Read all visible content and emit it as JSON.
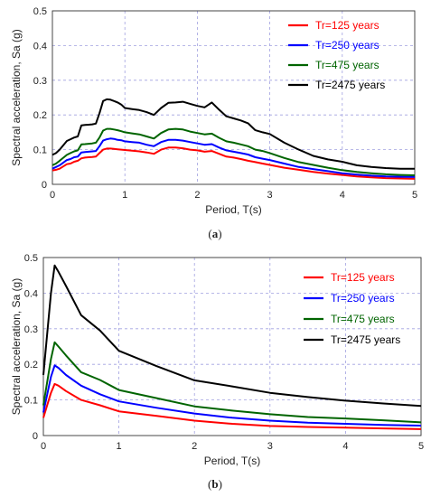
{
  "chart_data": [
    {
      "type": "line",
      "caption": "(a)",
      "xlabel": "Period, T(s)",
      "ylabel": "Spectral acceleration, Sa (g)",
      "xlim": [
        0,
        5
      ],
      "ylim": [
        0,
        0.5
      ],
      "xticks": [
        "0",
        "1",
        "2",
        "3",
        "4",
        "5"
      ],
      "yticks": [
        "0",
        "0.1",
        "0.2",
        "0.3",
        "0.4",
        "0.5"
      ],
      "grid": "dashed",
      "legend_position": "top-right",
      "series": [
        {
          "name": "Tr=125 years",
          "color": "#ff0000",
          "x": [
            0,
            0.05,
            0.1,
            0.2,
            0.25,
            0.3,
            0.35,
            0.4,
            0.45,
            0.5,
            0.55,
            0.6,
            0.65,
            0.7,
            0.75,
            0.8,
            0.85,
            0.9,
            0.95,
            1.0,
            1.1,
            1.2,
            1.3,
            1.4,
            1.5,
            1.6,
            1.7,
            1.8,
            1.9,
            2.0,
            2.1,
            2.2,
            2.3,
            2.4,
            2.5,
            2.6,
            2.7,
            2.8,
            2.9,
            3.0,
            3.2,
            3.4,
            3.6,
            3.8,
            4.0,
            4.2,
            4.4,
            4.6,
            4.8,
            5.0
          ],
          "y": [
            0.04,
            0.042,
            0.045,
            0.058,
            0.06,
            0.065,
            0.068,
            0.075,
            0.077,
            0.078,
            0.079,
            0.08,
            0.09,
            0.1,
            0.103,
            0.103,
            0.102,
            0.101,
            0.1,
            0.099,
            0.097,
            0.095,
            0.092,
            0.088,
            0.1,
            0.106,
            0.106,
            0.104,
            0.1,
            0.098,
            0.094,
            0.096,
            0.088,
            0.08,
            0.077,
            0.073,
            0.068,
            0.064,
            0.06,
            0.056,
            0.048,
            0.042,
            0.036,
            0.031,
            0.027,
            0.023,
            0.02,
            0.018,
            0.017,
            0.016
          ]
        },
        {
          "name": "Tr=250 years",
          "color": "#0000ff",
          "x": [
            0,
            0.05,
            0.1,
            0.2,
            0.25,
            0.3,
            0.35,
            0.4,
            0.45,
            0.5,
            0.55,
            0.6,
            0.65,
            0.7,
            0.75,
            0.8,
            0.85,
            0.9,
            0.95,
            1.0,
            1.1,
            1.2,
            1.3,
            1.4,
            1.5,
            1.6,
            1.7,
            1.8,
            1.9,
            2.0,
            2.1,
            2.2,
            2.3,
            2.4,
            2.5,
            2.6,
            2.7,
            2.8,
            2.9,
            3.0,
            3.2,
            3.4,
            3.6,
            3.8,
            4.0,
            4.2,
            4.4,
            4.6,
            4.8,
            5.0
          ],
          "y": [
            0.045,
            0.05,
            0.055,
            0.07,
            0.073,
            0.078,
            0.08,
            0.092,
            0.093,
            0.094,
            0.095,
            0.096,
            0.11,
            0.126,
            0.13,
            0.132,
            0.131,
            0.128,
            0.127,
            0.124,
            0.122,
            0.12,
            0.114,
            0.11,
            0.122,
            0.128,
            0.128,
            0.126,
            0.122,
            0.118,
            0.114,
            0.116,
            0.106,
            0.098,
            0.094,
            0.09,
            0.086,
            0.078,
            0.074,
            0.07,
            0.06,
            0.05,
            0.044,
            0.038,
            0.032,
            0.028,
            0.025,
            0.023,
            0.022,
            0.021
          ]
        },
        {
          "name": "Tr=475 years",
          "color": "#006400",
          "x": [
            0,
            0.05,
            0.1,
            0.2,
            0.25,
            0.3,
            0.35,
            0.4,
            0.45,
            0.5,
            0.55,
            0.6,
            0.65,
            0.7,
            0.75,
            0.8,
            0.85,
            0.9,
            0.95,
            1.0,
            1.1,
            1.2,
            1.3,
            1.4,
            1.5,
            1.6,
            1.7,
            1.8,
            1.9,
            2.0,
            2.1,
            2.2,
            2.3,
            2.4,
            2.5,
            2.6,
            2.7,
            2.8,
            2.9,
            3.0,
            3.2,
            3.4,
            3.6,
            3.8,
            4.0,
            4.2,
            4.4,
            4.6,
            4.8,
            5.0
          ],
          "y": [
            0.055,
            0.06,
            0.068,
            0.085,
            0.09,
            0.095,
            0.098,
            0.115,
            0.116,
            0.117,
            0.118,
            0.12,
            0.135,
            0.155,
            0.16,
            0.16,
            0.158,
            0.156,
            0.153,
            0.15,
            0.147,
            0.144,
            0.138,
            0.132,
            0.148,
            0.158,
            0.16,
            0.158,
            0.152,
            0.148,
            0.144,
            0.146,
            0.134,
            0.124,
            0.12,
            0.115,
            0.11,
            0.1,
            0.096,
            0.09,
            0.076,
            0.064,
            0.056,
            0.048,
            0.041,
            0.036,
            0.032,
            0.029,
            0.027,
            0.026
          ]
        },
        {
          "name": "Tr=2475 years",
          "color": "#000000",
          "x": [
            0,
            0.05,
            0.1,
            0.2,
            0.25,
            0.3,
            0.35,
            0.4,
            0.45,
            0.5,
            0.55,
            0.6,
            0.65,
            0.7,
            0.75,
            0.8,
            0.85,
            0.9,
            0.95,
            1.0,
            1.1,
            1.2,
            1.3,
            1.4,
            1.5,
            1.6,
            1.7,
            1.8,
            1.9,
            2.0,
            2.1,
            2.2,
            2.3,
            2.4,
            2.5,
            2.6,
            2.7,
            2.8,
            2.9,
            3.0,
            3.2,
            3.4,
            3.6,
            3.8,
            4.0,
            4.2,
            4.4,
            4.6,
            4.8,
            5.0
          ],
          "y": [
            0.085,
            0.09,
            0.1,
            0.125,
            0.13,
            0.135,
            0.138,
            0.17,
            0.171,
            0.172,
            0.173,
            0.175,
            0.205,
            0.24,
            0.245,
            0.244,
            0.24,
            0.236,
            0.23,
            0.22,
            0.217,
            0.214,
            0.208,
            0.2,
            0.22,
            0.235,
            0.236,
            0.238,
            0.232,
            0.226,
            0.222,
            0.236,
            0.215,
            0.196,
            0.19,
            0.184,
            0.176,
            0.156,
            0.15,
            0.145,
            0.12,
            0.1,
            0.082,
            0.072,
            0.065,
            0.055,
            0.05,
            0.047,
            0.045,
            0.045
          ]
        }
      ]
    },
    {
      "type": "line",
      "caption": "(b)",
      "xlabel": "Period, T(s)",
      "ylabel": "Spectral acceleration, Sa (g)",
      "xlim": [
        0,
        5
      ],
      "ylim": [
        0,
        0.5
      ],
      "xticks": [
        "0",
        "1",
        "2",
        "3",
        "4",
        "5"
      ],
      "yticks": [
        "0",
        "0.1",
        "0.2",
        "0.3",
        "0.4",
        "0.5"
      ],
      "grid": "dashed",
      "legend_position": "right",
      "series": [
        {
          "name": "Tr=125 years",
          "color": "#ff0000",
          "x": [
            0,
            0.1,
            0.15,
            0.2,
            0.3,
            0.5,
            0.75,
            1.0,
            1.5,
            2.0,
            2.5,
            3.0,
            3.5,
            4.0,
            4.5,
            5.0
          ],
          "y": [
            0.05,
            0.12,
            0.145,
            0.14,
            0.125,
            0.1,
            0.085,
            0.068,
            0.055,
            0.042,
            0.033,
            0.027,
            0.024,
            0.022,
            0.02,
            0.018
          ]
        },
        {
          "name": "Tr=250 years",
          "color": "#0000ff",
          "x": [
            0,
            0.1,
            0.15,
            0.2,
            0.3,
            0.5,
            0.75,
            1.0,
            1.5,
            2.0,
            2.5,
            3.0,
            3.5,
            4.0,
            4.5,
            5.0
          ],
          "y": [
            0.065,
            0.165,
            0.197,
            0.19,
            0.17,
            0.14,
            0.116,
            0.096,
            0.078,
            0.062,
            0.05,
            0.042,
            0.036,
            0.033,
            0.03,
            0.028
          ]
        },
        {
          "name": "Tr=475 years",
          "color": "#006400",
          "x": [
            0,
            0.1,
            0.15,
            0.2,
            0.3,
            0.5,
            0.75,
            1.0,
            1.5,
            2.0,
            2.5,
            3.0,
            3.5,
            4.0,
            4.5,
            5.0
          ],
          "y": [
            0.085,
            0.215,
            0.262,
            0.25,
            0.225,
            0.178,
            0.156,
            0.128,
            0.105,
            0.082,
            0.07,
            0.06,
            0.052,
            0.048,
            0.043,
            0.037
          ]
        },
        {
          "name": "Tr=2475 years",
          "color": "#000000",
          "x": [
            0,
            0.1,
            0.15,
            0.2,
            0.3,
            0.5,
            0.75,
            1.0,
            1.5,
            2.0,
            2.5,
            3.0,
            3.5,
            4.0,
            4.5,
            5.0
          ],
          "y": [
            0.17,
            0.4,
            0.478,
            0.46,
            0.42,
            0.338,
            0.295,
            0.238,
            0.195,
            0.155,
            0.138,
            0.12,
            0.108,
            0.098,
            0.09,
            0.083
          ]
        }
      ]
    }
  ]
}
